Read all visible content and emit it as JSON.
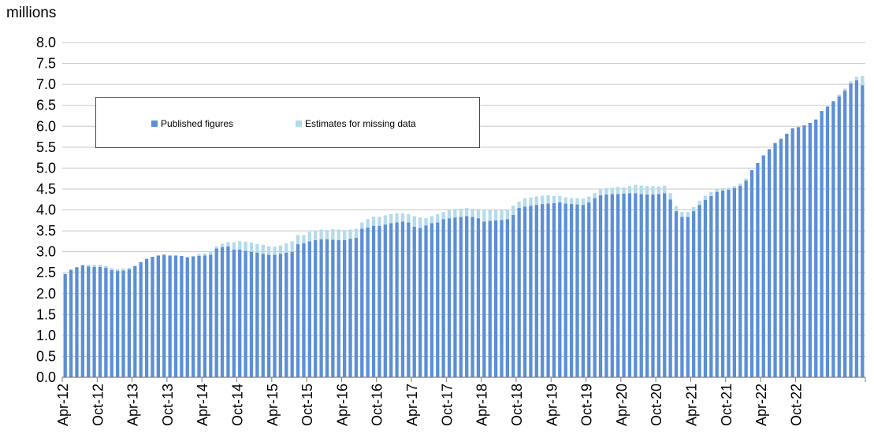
{
  "chart_data": {
    "type": "bar",
    "stacked": true,
    "unit_label": "millions",
    "ylim": [
      0,
      8.0
    ],
    "yticks": [
      "0.0",
      "0.5",
      "1.0",
      "1.5",
      "2.0",
      "2.5",
      "3.0",
      "3.5",
      "4.0",
      "4.5",
      "5.0",
      "5.5",
      "6.0",
      "6.5",
      "7.0",
      "7.5",
      "8.0"
    ],
    "xtick_labels": [
      "Apr-12",
      "Oct-12",
      "Apr-13",
      "Oct-13",
      "Apr-14",
      "Oct-14",
      "Apr-15",
      "Oct-15",
      "Apr-16",
      "Oct-16",
      "Apr-17",
      "Oct-17",
      "Apr-18",
      "Oct-18",
      "Apr-19",
      "Oct-19",
      "Apr-20",
      "Oct-20",
      "Apr-21",
      "Oct-21",
      "Apr-22",
      "Oct-22"
    ],
    "grid": true,
    "legend_position": "top-left",
    "colors": {
      "published": "#5b8fd6",
      "estimates": "#b4dbeb",
      "grid": "#c8c8c8",
      "axis": "#7f7f7f"
    },
    "series": [
      {
        "name": "Published figures",
        "values": [
          2.47,
          2.57,
          2.63,
          2.68,
          2.65,
          2.64,
          2.64,
          2.62,
          2.56,
          2.54,
          2.55,
          2.58,
          2.66,
          2.75,
          2.83,
          2.88,
          2.91,
          2.93,
          2.91,
          2.91,
          2.9,
          2.87,
          2.89,
          2.9,
          2.91,
          2.93,
          3.08,
          3.11,
          3.13,
          3.05,
          3.05,
          3.02,
          3.0,
          2.98,
          2.95,
          2.93,
          2.93,
          2.95,
          2.98,
          3.0,
          3.18,
          3.2,
          3.25,
          3.28,
          3.3,
          3.3,
          3.29,
          3.28,
          3.28,
          3.31,
          3.33,
          3.55,
          3.58,
          3.62,
          3.62,
          3.65,
          3.68,
          3.7,
          3.72,
          3.7,
          3.6,
          3.57,
          3.63,
          3.68,
          3.7,
          3.78,
          3.8,
          3.82,
          3.83,
          3.85,
          3.83,
          3.8,
          3.72,
          3.74,
          3.75,
          3.76,
          3.78,
          3.88,
          4.05,
          4.08,
          4.1,
          4.12,
          4.14,
          4.15,
          4.16,
          4.18,
          4.15,
          4.14,
          4.13,
          4.12,
          4.18,
          4.28,
          4.35,
          4.37,
          4.38,
          4.38,
          4.39,
          4.4,
          4.4,
          4.38,
          4.37,
          4.37,
          4.38,
          4.4,
          4.25,
          3.97,
          3.83,
          3.83,
          3.97,
          4.12,
          4.24,
          4.33,
          4.43,
          4.46,
          4.48,
          4.52,
          4.58,
          4.7,
          4.95,
          5.12,
          5.3,
          5.45,
          5.6,
          5.7,
          5.82,
          5.95,
          5.98,
          6.02,
          6.08,
          6.16,
          6.36,
          6.47,
          6.6,
          6.71,
          6.85,
          7.02,
          7.1,
          6.98
        ]
      },
      {
        "name": "Estimates for missing data",
        "values": [
          0,
          0,
          0,
          0,
          0.04,
          0.05,
          0.05,
          0.04,
          0.05,
          0.05,
          0.05,
          0.04,
          0,
          0,
          0,
          0,
          0,
          0,
          0,
          0,
          0,
          0,
          0,
          0.05,
          0.05,
          0.08,
          0.05,
          0.08,
          0.1,
          0.18,
          0.2,
          0.22,
          0.22,
          0.2,
          0.22,
          0.2,
          0.19,
          0.2,
          0.22,
          0.25,
          0.22,
          0.2,
          0.23,
          0.22,
          0.23,
          0.22,
          0.25,
          0.25,
          0.24,
          0.22,
          0.22,
          0.15,
          0.2,
          0.22,
          0.22,
          0.22,
          0.22,
          0.22,
          0.2,
          0.2,
          0.25,
          0.25,
          0.17,
          0.17,
          0.2,
          0.17,
          0.2,
          0.2,
          0.2,
          0.2,
          0.2,
          0.22,
          0.28,
          0.26,
          0.25,
          0.24,
          0.22,
          0.22,
          0.15,
          0.2,
          0.2,
          0.2,
          0.2,
          0.2,
          0.17,
          0.15,
          0.15,
          0.14,
          0.15,
          0.15,
          0.14,
          0.12,
          0.15,
          0.15,
          0.15,
          0.17,
          0.15,
          0.17,
          0.2,
          0.2,
          0.2,
          0.2,
          0.18,
          0.18,
          0.15,
          0.12,
          0.12,
          0.12,
          0.1,
          0.1,
          0.1,
          0.1,
          0.06,
          0.06,
          0.05,
          0.05,
          0.05,
          0.05,
          0,
          0,
          0,
          0,
          0,
          0,
          0,
          0,
          0,
          0,
          0,
          0,
          0,
          0,
          0,
          0.05,
          0.05,
          0.05,
          0.08,
          0.22
        ]
      }
    ]
  }
}
